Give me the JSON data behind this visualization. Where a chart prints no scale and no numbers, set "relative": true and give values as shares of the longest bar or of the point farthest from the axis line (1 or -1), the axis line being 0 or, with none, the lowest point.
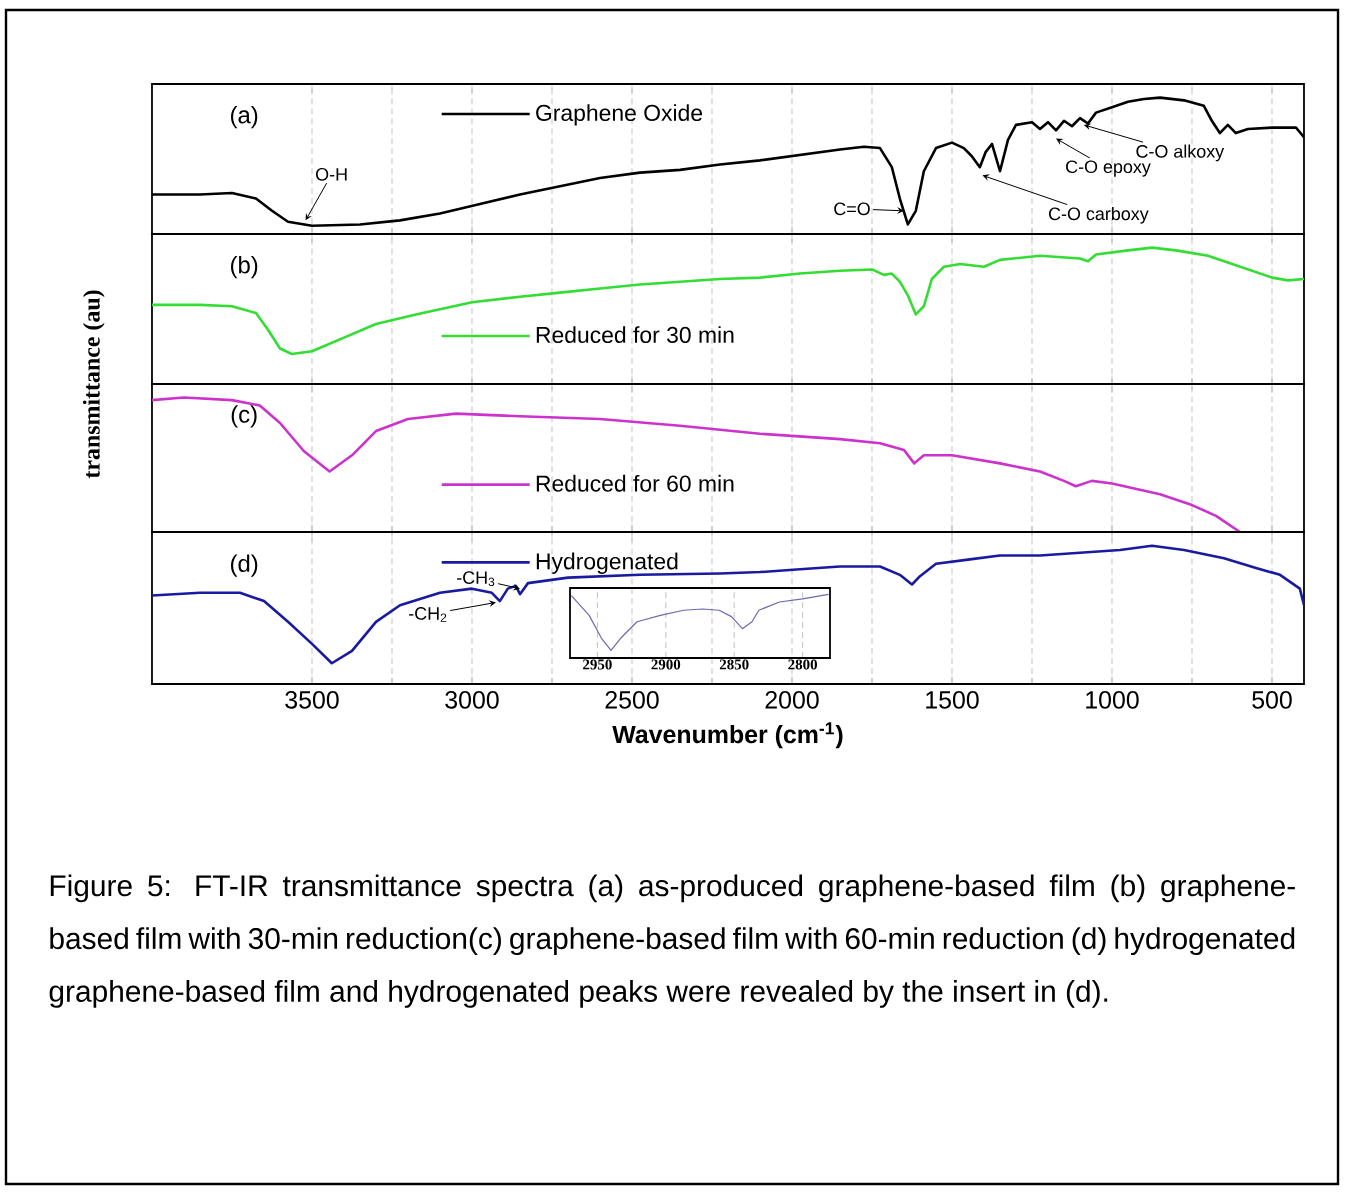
{
  "chart_data": [
    {
      "type": "line",
      "title": "(a)",
      "relative": true,
      "xlim": [
        4000,
        400
      ],
      "xticks": [
        3500,
        3000,
        2500,
        2000,
        1500,
        1000,
        500
      ],
      "grid": "x",
      "legend": "top",
      "tick_labels": false,
      "x": [
        4000,
        3850,
        3750,
        3675,
        3625,
        3575,
        3500,
        3350,
        3225,
        3100,
        2975,
        2850,
        2725,
        2600,
        2475,
        2350,
        2225,
        2100,
        1975,
        1850,
        1775,
        1725,
        1688,
        1663,
        1638,
        1613,
        1588,
        1550,
        1500,
        1463,
        1438,
        1413,
        1395,
        1375,
        1350,
        1325,
        1300,
        1250,
        1225,
        1200,
        1175,
        1150,
        1125,
        1100,
        1075,
        1050,
        1000,
        950,
        900,
        850,
        775,
        713,
        688,
        663,
        638,
        613,
        575,
        500,
        425,
        400
      ],
      "series": [
        {
          "name": "Graphene Oxide",
          "color": "#000000",
          "values": [
            0.29,
            0.29,
            0.3,
            0.26,
            0.17,
            0.09,
            0.06,
            0.07,
            0.1,
            0.15,
            0.22,
            0.29,
            0.35,
            0.41,
            0.45,
            0.47,
            0.51,
            0.54,
            0.58,
            0.62,
            0.64,
            0.63,
            0.49,
            0.26,
            0.07,
            0.17,
            0.46,
            0.63,
            0.67,
            0.63,
            0.57,
            0.49,
            0.6,
            0.66,
            0.46,
            0.69,
            0.8,
            0.82,
            0.77,
            0.82,
            0.76,
            0.83,
            0.79,
            0.85,
            0.81,
            0.89,
            0.93,
            0.97,
            0.99,
            1,
            0.98,
            0.94,
            0.83,
            0.74,
            0.8,
            0.74,
            0.77,
            0.78,
            0.78,
            0.71
          ]
        }
      ],
      "annotations": [
        {
          "text": "O-H",
          "x": 3520,
          "y": 0.1
        },
        {
          "text": "C=O",
          "x": 1650,
          "y": 0.17
        },
        {
          "text": "C-O carboxy",
          "x": 1405,
          "y": 0.43
        },
        {
          "text": "C-O epoxy",
          "x": 1175,
          "y": 0.7
        },
        {
          "text": "C-O alkoxy",
          "x": 1088,
          "y": 0.8
        }
      ]
    },
    {
      "type": "line",
      "title": "(b)",
      "ylabel": "transmittance (au)",
      "relative": true,
      "xlim": [
        4000,
        400
      ],
      "xticks": [
        3500,
        3000,
        2500,
        2000,
        1500,
        1000,
        500
      ],
      "grid": "x",
      "legend": "bottom",
      "tick_labels": false,
      "x": [
        4000,
        3850,
        3750,
        3675,
        3638,
        3600,
        3563,
        3500,
        3400,
        3300,
        3175,
        3000,
        2850,
        2725,
        2600,
        2475,
        2350,
        2225,
        2100,
        1975,
        1850,
        1750,
        1713,
        1688,
        1663,
        1638,
        1613,
        1588,
        1563,
        1525,
        1475,
        1400,
        1350,
        1225,
        1100,
        1075,
        1050,
        950,
        875,
        800,
        700,
        600,
        500,
        450,
        400
      ],
      "series": [
        {
          "name": "Reduced for 30 min",
          "color": "#33dd33",
          "values": [
            0.58,
            0.58,
            0.57,
            0.52,
            0.4,
            0.26,
            0.22,
            0.24,
            0.34,
            0.44,
            0.51,
            0.6,
            0.64,
            0.67,
            0.7,
            0.73,
            0.75,
            0.77,
            0.78,
            0.81,
            0.83,
            0.84,
            0.8,
            0.81,
            0.75,
            0.65,
            0.51,
            0.57,
            0.77,
            0.86,
            0.88,
            0.86,
            0.91,
            0.94,
            0.92,
            0.9,
            0.95,
            0.98,
            1,
            0.98,
            0.94,
            0.86,
            0.78,
            0.76,
            0.77
          ]
        }
      ]
    },
    {
      "type": "line",
      "title": "(c)",
      "relative": true,
      "xlim": [
        4000,
        400
      ],
      "xticks": [
        3500,
        3000,
        2500,
        2000,
        1500,
        1000,
        500
      ],
      "grid": "x",
      "legend": "bottom",
      "tick_labels": false,
      "x": [
        4000,
        3900,
        3750,
        3663,
        3600,
        3525,
        3445,
        3375,
        3300,
        3200,
        3050,
        2850,
        2600,
        2350,
        2100,
        1850,
        1725,
        1650,
        1618,
        1588,
        1500,
        1350,
        1225,
        1150,
        1113,
        1063,
        1000,
        850,
        750,
        675,
        600
      ],
      "series": [
        {
          "name": "Reduced for 60 min",
          "color": "#cc33cc",
          "values": [
            0.98,
            1,
            0.98,
            0.94,
            0.81,
            0.6,
            0.45,
            0.57,
            0.75,
            0.84,
            0.88,
            0.86,
            0.84,
            0.79,
            0.73,
            0.69,
            0.66,
            0.61,
            0.51,
            0.57,
            0.57,
            0.51,
            0.45,
            0.38,
            0.34,
            0.38,
            0.36,
            0.28,
            0.2,
            0.12,
            0
          ]
        }
      ]
    },
    {
      "type": "line",
      "title": "(d)",
      "xlabel": "Wavenumber (cm$^{-1}$)",
      "relative": true,
      "xlim": [
        4000,
        400
      ],
      "xticks": [
        3500,
        3000,
        2500,
        2000,
        1500,
        1000,
        500
      ],
      "grid": "x",
      "legend": "top",
      "tick_labels": "x",
      "x": [
        4000,
        3850,
        3725,
        3650,
        3575,
        3500,
        3438,
        3375,
        3300,
        3225,
        3100,
        3000,
        2938,
        2913,
        2888,
        2863,
        2850,
        2825,
        2700,
        2475,
        2225,
        2100,
        1975,
        1850,
        1725,
        1663,
        1625,
        1600,
        1550,
        1450,
        1350,
        1225,
        1100,
        975,
        875,
        775,
        650,
        550,
        475,
        413,
        400
      ],
      "series": [
        {
          "name": "Hydrogenated",
          "color": "#1a1aa0",
          "values": [
            0.64,
            0.66,
            0.66,
            0.6,
            0.45,
            0.29,
            0.15,
            0.24,
            0.45,
            0.57,
            0.66,
            0.69,
            0.66,
            0.6,
            0.69,
            0.71,
            0.65,
            0.73,
            0.77,
            0.79,
            0.8,
            0.81,
            0.83,
            0.85,
            0.85,
            0.79,
            0.72,
            0.78,
            0.87,
            0.9,
            0.93,
            0.93,
            0.95,
            0.97,
            1,
            0.97,
            0.91,
            0.84,
            0.79,
            0.69,
            0.57
          ]
        }
      ],
      "annotations": [
        {
          "text": "-CH$_{3}$",
          "x": 2850,
          "y": 0.69
        },
        {
          "text": "-CH$_{2}$",
          "x": 2925,
          "y": 0.59
        },
        "Figure 5: FT-IR transmittance spectra (a) as-produced graphene-based film (b) graphene-based film with 30-min reduction(c) graphene-based film with 60-min reduction (d) hydrogenated graphene-based film and hydrogenated peaks were revealed by the insert in (d)."
      ]
    },
    {
      "type": "line",
      "relative": true,
      "xlim": [
        2970,
        2780
      ],
      "xticks": [
        2950,
        2900,
        2850,
        2800
      ],
      "grid": "x",
      "tick_labels": "x",
      "x": [
        2969,
        2956,
        2947,
        2940,
        2933,
        2921,
        2904,
        2887,
        2873,
        2861,
        2852,
        2844,
        2837,
        2832,
        2817,
        2800,
        2781
      ],
      "series": [
        {
          "color": "#6a6ab0",
          "values": [
            0.98,
            0.67,
            0.31,
            0.12,
            0.31,
            0.57,
            0.67,
            0.75,
            0.77,
            0.75,
            0.65,
            0.46,
            0.57,
            0.75,
            0.88,
            0.93,
            1
          ]
        }
      ]
    }
  ]
}
